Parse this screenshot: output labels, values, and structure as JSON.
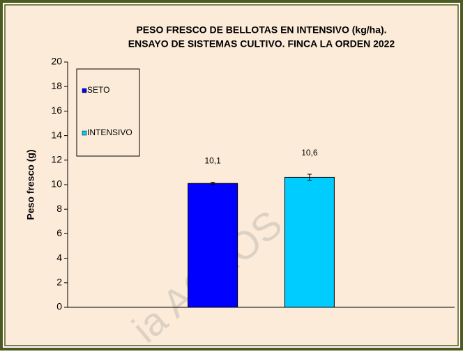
{
  "chart_data": {
    "type": "bar",
    "title": [
      "PESO FRESCO DE BELLOTAS EN INTENSIVO (kg/ha).",
      "ENSAYO DE SISTEMAS CULTIVO. FINCA LA ORDEN 2022"
    ],
    "y_label": "Peso fresco (g)",
    "categories": [
      null,
      null,
      null,
      null
    ],
    "series": [
      {
        "name": "SETO",
        "color": "#0000ff",
        "values": [
          null,
          10.1,
          null,
          null
        ],
        "errors": [
          null,
          0.1,
          null,
          null
        ],
        "value_labels": [
          null,
          "10,1",
          null,
          null
        ]
      },
      {
        "name": "INTENSIVO",
        "color": "#00ccff",
        "values": [
          null,
          null,
          10.6,
          null
        ],
        "errors": [
          null,
          null,
          0.25,
          null
        ],
        "value_labels": [
          null,
          null,
          "10,6",
          null
        ]
      }
    ],
    "ylim": [
      0,
      20
    ],
    "yticks": [
      0,
      2,
      4,
      6,
      8,
      10,
      12,
      14,
      16,
      18,
      20
    ],
    "legend": "upper left",
    "watermark": "ia AGROS"
  }
}
